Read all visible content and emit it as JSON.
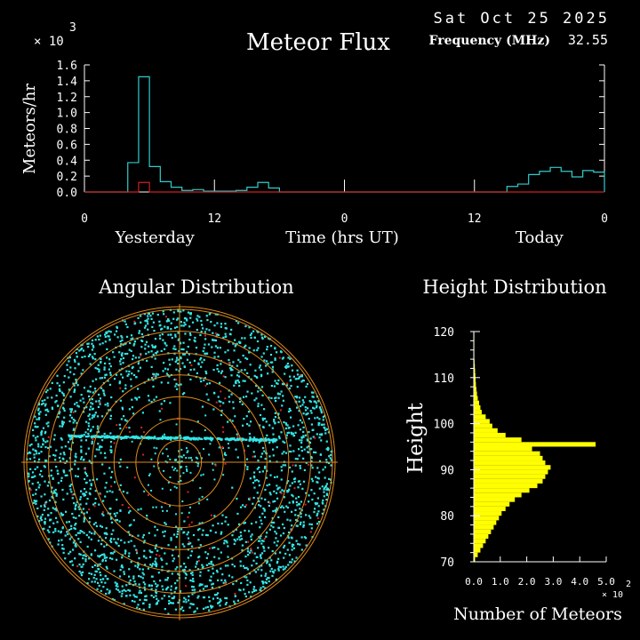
{
  "header": {
    "date": "Sat Oct 25 2025",
    "title": "Meteor Flux",
    "frequency_label": "Frequency (MHz)",
    "frequency_value": "32.55"
  },
  "colors": {
    "background": "#000000",
    "axis": "#ffffff",
    "flux_main": "#33cccc",
    "flux_secondary": "#cc2222",
    "polar_rings": "#e08a1a",
    "polar_points": "#33e6e6",
    "polar_points_secondary": "#dd2222",
    "height_bars": "#ffff00"
  },
  "chart_data": [
    {
      "type": "line",
      "step": true,
      "title": "Meteor Flux",
      "ylabel": "Meteors/hr",
      "xlabel": "Time (hrs UT)",
      "y_multiplier": "× 10",
      "y_multiplier_exp": "3",
      "ylim": [
        0,
        1.6
      ],
      "yticks": [
        "0.0",
        "0.2",
        "0.4",
        "0.6",
        "0.8",
        "1.0",
        "1.2",
        "1.4",
        "1.6"
      ],
      "xlim": [
        0,
        48
      ],
      "xticks": [
        {
          "x": 0,
          "label": "0"
        },
        {
          "x": 12,
          "label": "12"
        },
        {
          "x": 24,
          "label": "0"
        },
        {
          "x": 36,
          "label": "12"
        },
        {
          "x": 48,
          "label": "0"
        }
      ],
      "day_labels": [
        {
          "x": 6.5,
          "label": "Yesterday"
        },
        {
          "x": 42,
          "label": "Today"
        }
      ],
      "grid": false,
      "series": [
        {
          "role": "main",
          "bin_hours": 1,
          "values": [
            0,
            0,
            0,
            0,
            0.37,
            1.45,
            0.32,
            0.13,
            0.06,
            0.02,
            0.03,
            0.01,
            0.01,
            0.01,
            0.02,
            0.06,
            0.12,
            0.05,
            0,
            0,
            0,
            0,
            0,
            0,
            0,
            0,
            0,
            0,
            0,
            0,
            0,
            0,
            0,
            0,
            0,
            0,
            0,
            0,
            0,
            0.07,
            0.1,
            0.22,
            0.26,
            0.31,
            0.26,
            0.19,
            0.27,
            0.25
          ]
        },
        {
          "role": "secondary",
          "bin_hours": 1,
          "values": [
            0,
            0,
            0,
            0,
            0,
            0.12,
            0,
            0,
            0,
            0,
            0,
            0,
            0,
            0,
            0,
            0,
            0,
            0,
            0,
            0,
            0,
            0,
            0,
            0,
            0,
            0,
            0,
            0,
            0,
            0,
            0,
            0,
            0,
            0,
            0,
            0,
            0,
            0,
            0,
            0,
            0,
            0,
            0,
            0,
            0,
            0,
            0,
            0
          ]
        }
      ]
    },
    {
      "type": "scatter",
      "coordinate_system": "polar",
      "title": "Angular Distribution",
      "rings": 7,
      "grid": true
    },
    {
      "type": "bar",
      "orientation": "horizontal",
      "title": "Height Distribution",
      "ylabel": "Height",
      "xlabel": "Number of Meteors",
      "x_multiplier": "× 10",
      "x_multiplier_exp": "2",
      "xlim": [
        0,
        5.0
      ],
      "xticks": [
        "0.0",
        "1.0",
        "2.0",
        "3.0",
        "4.0",
        "5.0"
      ],
      "ylim": [
        70,
        120
      ],
      "yticks": [
        "70",
        "80",
        "90",
        "100",
        "110",
        "120"
      ],
      "height_start": 70,
      "height_step": 1,
      "values": [
        0.05,
        0.15,
        0.25,
        0.35,
        0.45,
        0.55,
        0.65,
        0.75,
        0.85,
        0.95,
        1.05,
        1.2,
        1.35,
        1.55,
        1.8,
        2.1,
        2.4,
        2.6,
        2.7,
        2.8,
        2.9,
        2.7,
        2.6,
        2.5,
        2.2,
        4.6,
        1.8,
        1.2,
        0.9,
        0.7,
        0.6,
        0.45,
        0.3,
        0.25,
        0.2,
        0.15,
        0.12,
        0.1,
        0.08,
        0.07,
        0.06,
        0.05,
        0.04,
        0.03,
        0.02,
        0.02,
        0.02,
        0.02,
        0.02,
        0.02
      ]
    }
  ]
}
